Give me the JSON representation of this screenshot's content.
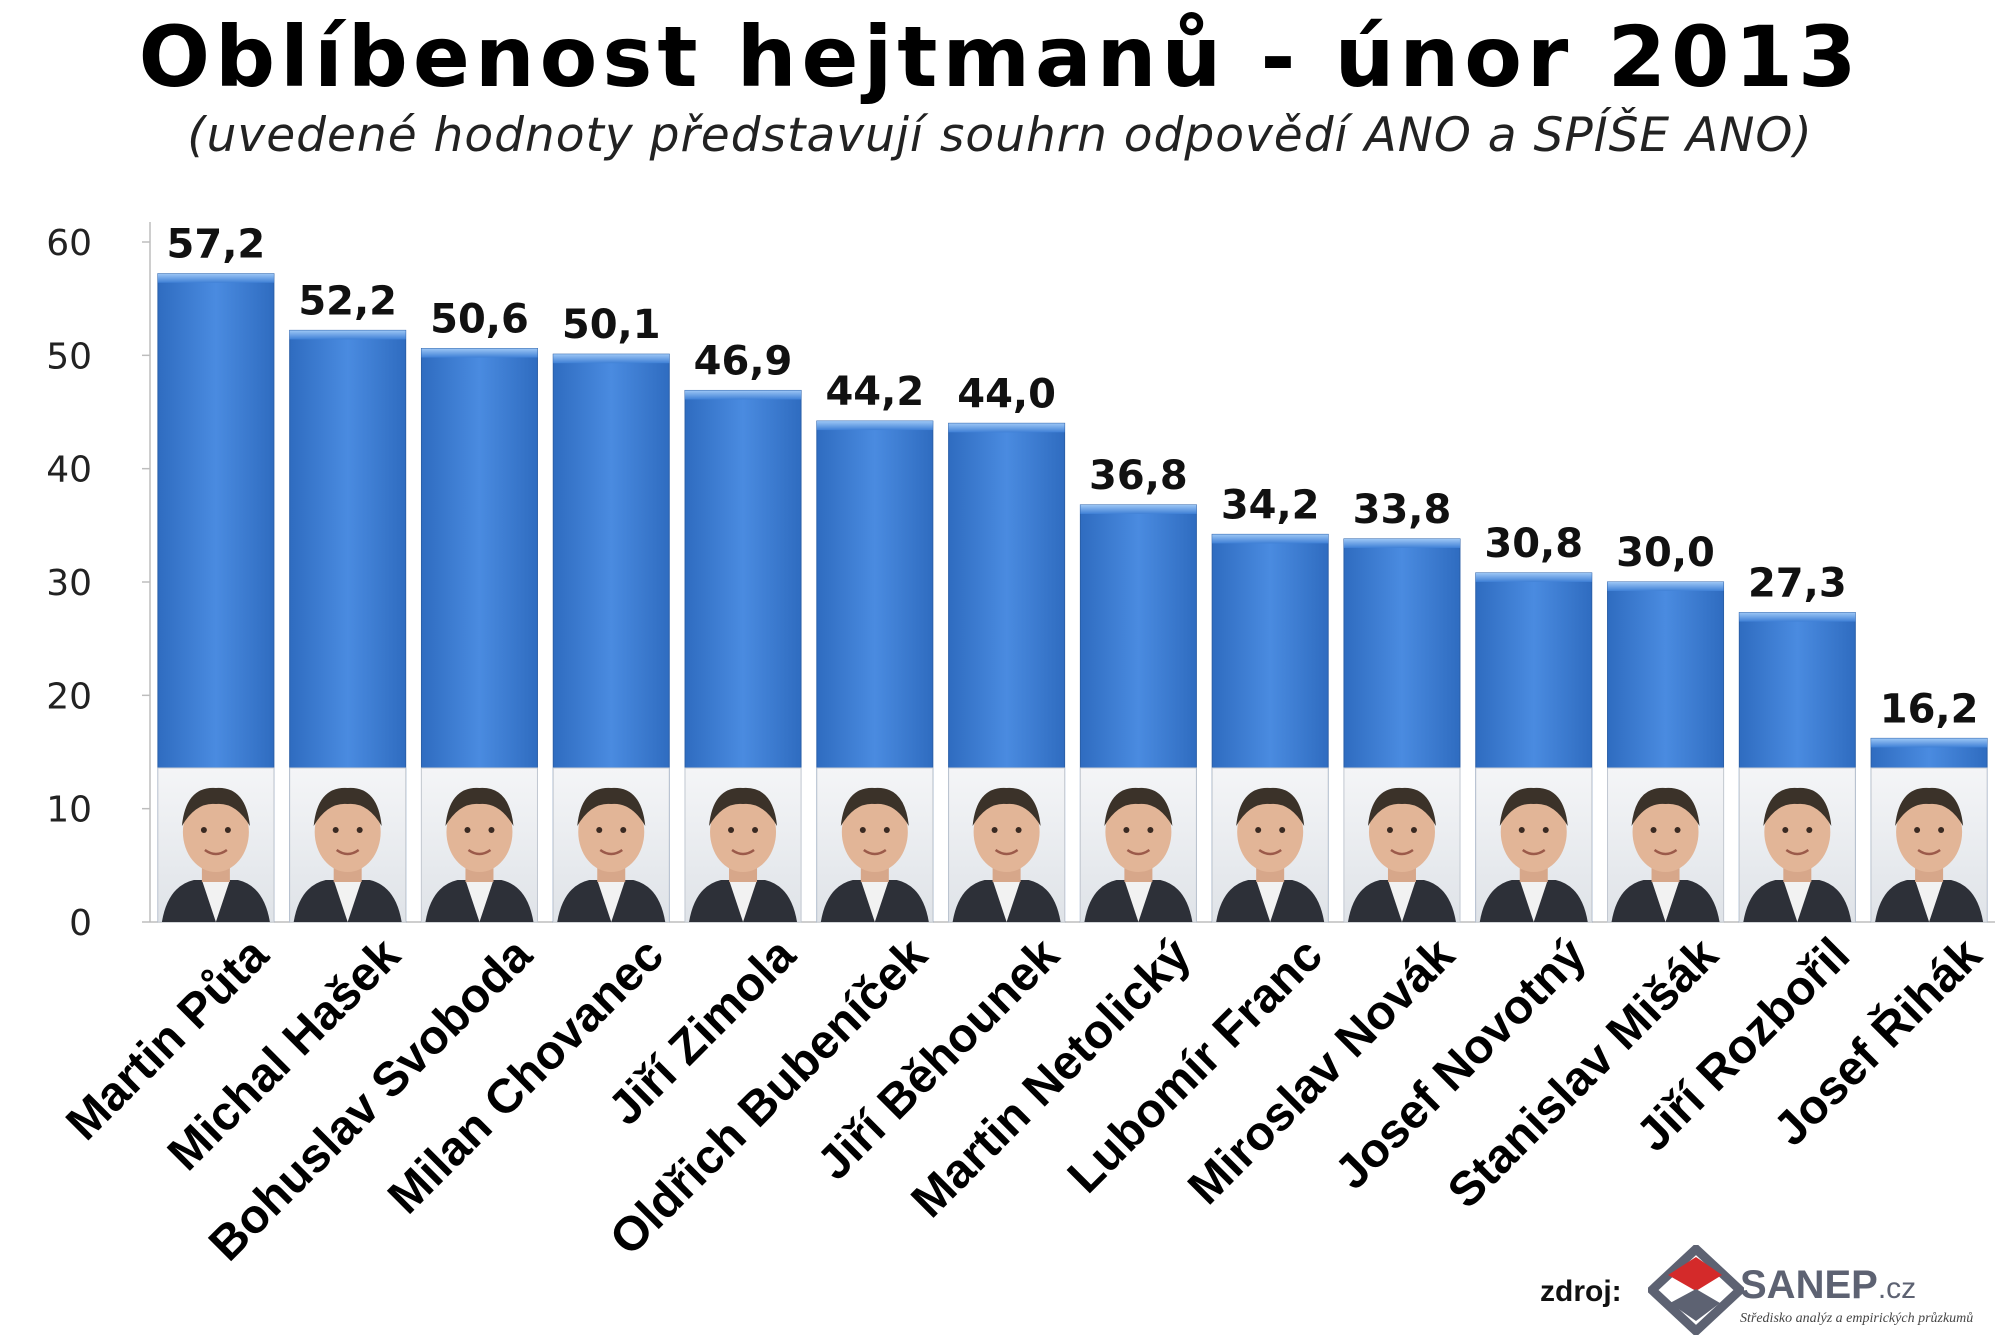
{
  "title": "Oblíbenost hejtmanů - únor 2013",
  "subtitle": "(uvedené hodnoty představují souhrn odpovědí ANO a SPÍŠE ANO)",
  "chart_data": {
    "type": "bar",
    "title": "Oblíbenost hejtmanů - únor 2013",
    "subtitle": "(uvedené hodnoty představují souhrn odpovědí ANO a SPÍŠE ANO)",
    "categories": [
      "Martin Půta",
      "Michal Hašek",
      "Bohuslav Svoboda",
      "Milan Chovanec",
      "Jiří Zimola",
      "Oldřich Bubeníček",
      "Jiří Běhounek",
      "Martin Netolický",
      "Lubomír Franc",
      "Miroslav Novák",
      "Josef Novotný",
      "Stanislav Mišák",
      "Jiří Rozbořil",
      "Josef Řihák"
    ],
    "values": [
      57.2,
      52.2,
      50.6,
      50.1,
      46.9,
      44.2,
      44.0,
      36.8,
      34.2,
      33.8,
      30.8,
      30.0,
      27.3,
      16.2
    ],
    "value_labels": [
      "57,2",
      "52,2",
      "50,6",
      "50,1",
      "46,9",
      "44,2",
      "44,0",
      "36,8",
      "34,2",
      "33,8",
      "30,8",
      "30,0",
      "27,3",
      "16,2"
    ],
    "ylim": [
      0,
      60
    ],
    "yticks": [
      0,
      10,
      20,
      30,
      40,
      50,
      60
    ],
    "xlabel": "",
    "ylabel": "",
    "grid": false,
    "legend": "none",
    "bar_color": "#3d7fd4",
    "bar_color_dark": "#2a66b8",
    "bar_highlight": "#7fb2ee"
  },
  "footer": {
    "source_label": "zdroj:",
    "brand": "SANEP",
    "brand_tld": ".cz",
    "tagline": "Středisko analýz a empirických průzkumů"
  },
  "icons": {
    "logo": "sanep-logo-icon",
    "portrait": "person-portrait-icon"
  }
}
